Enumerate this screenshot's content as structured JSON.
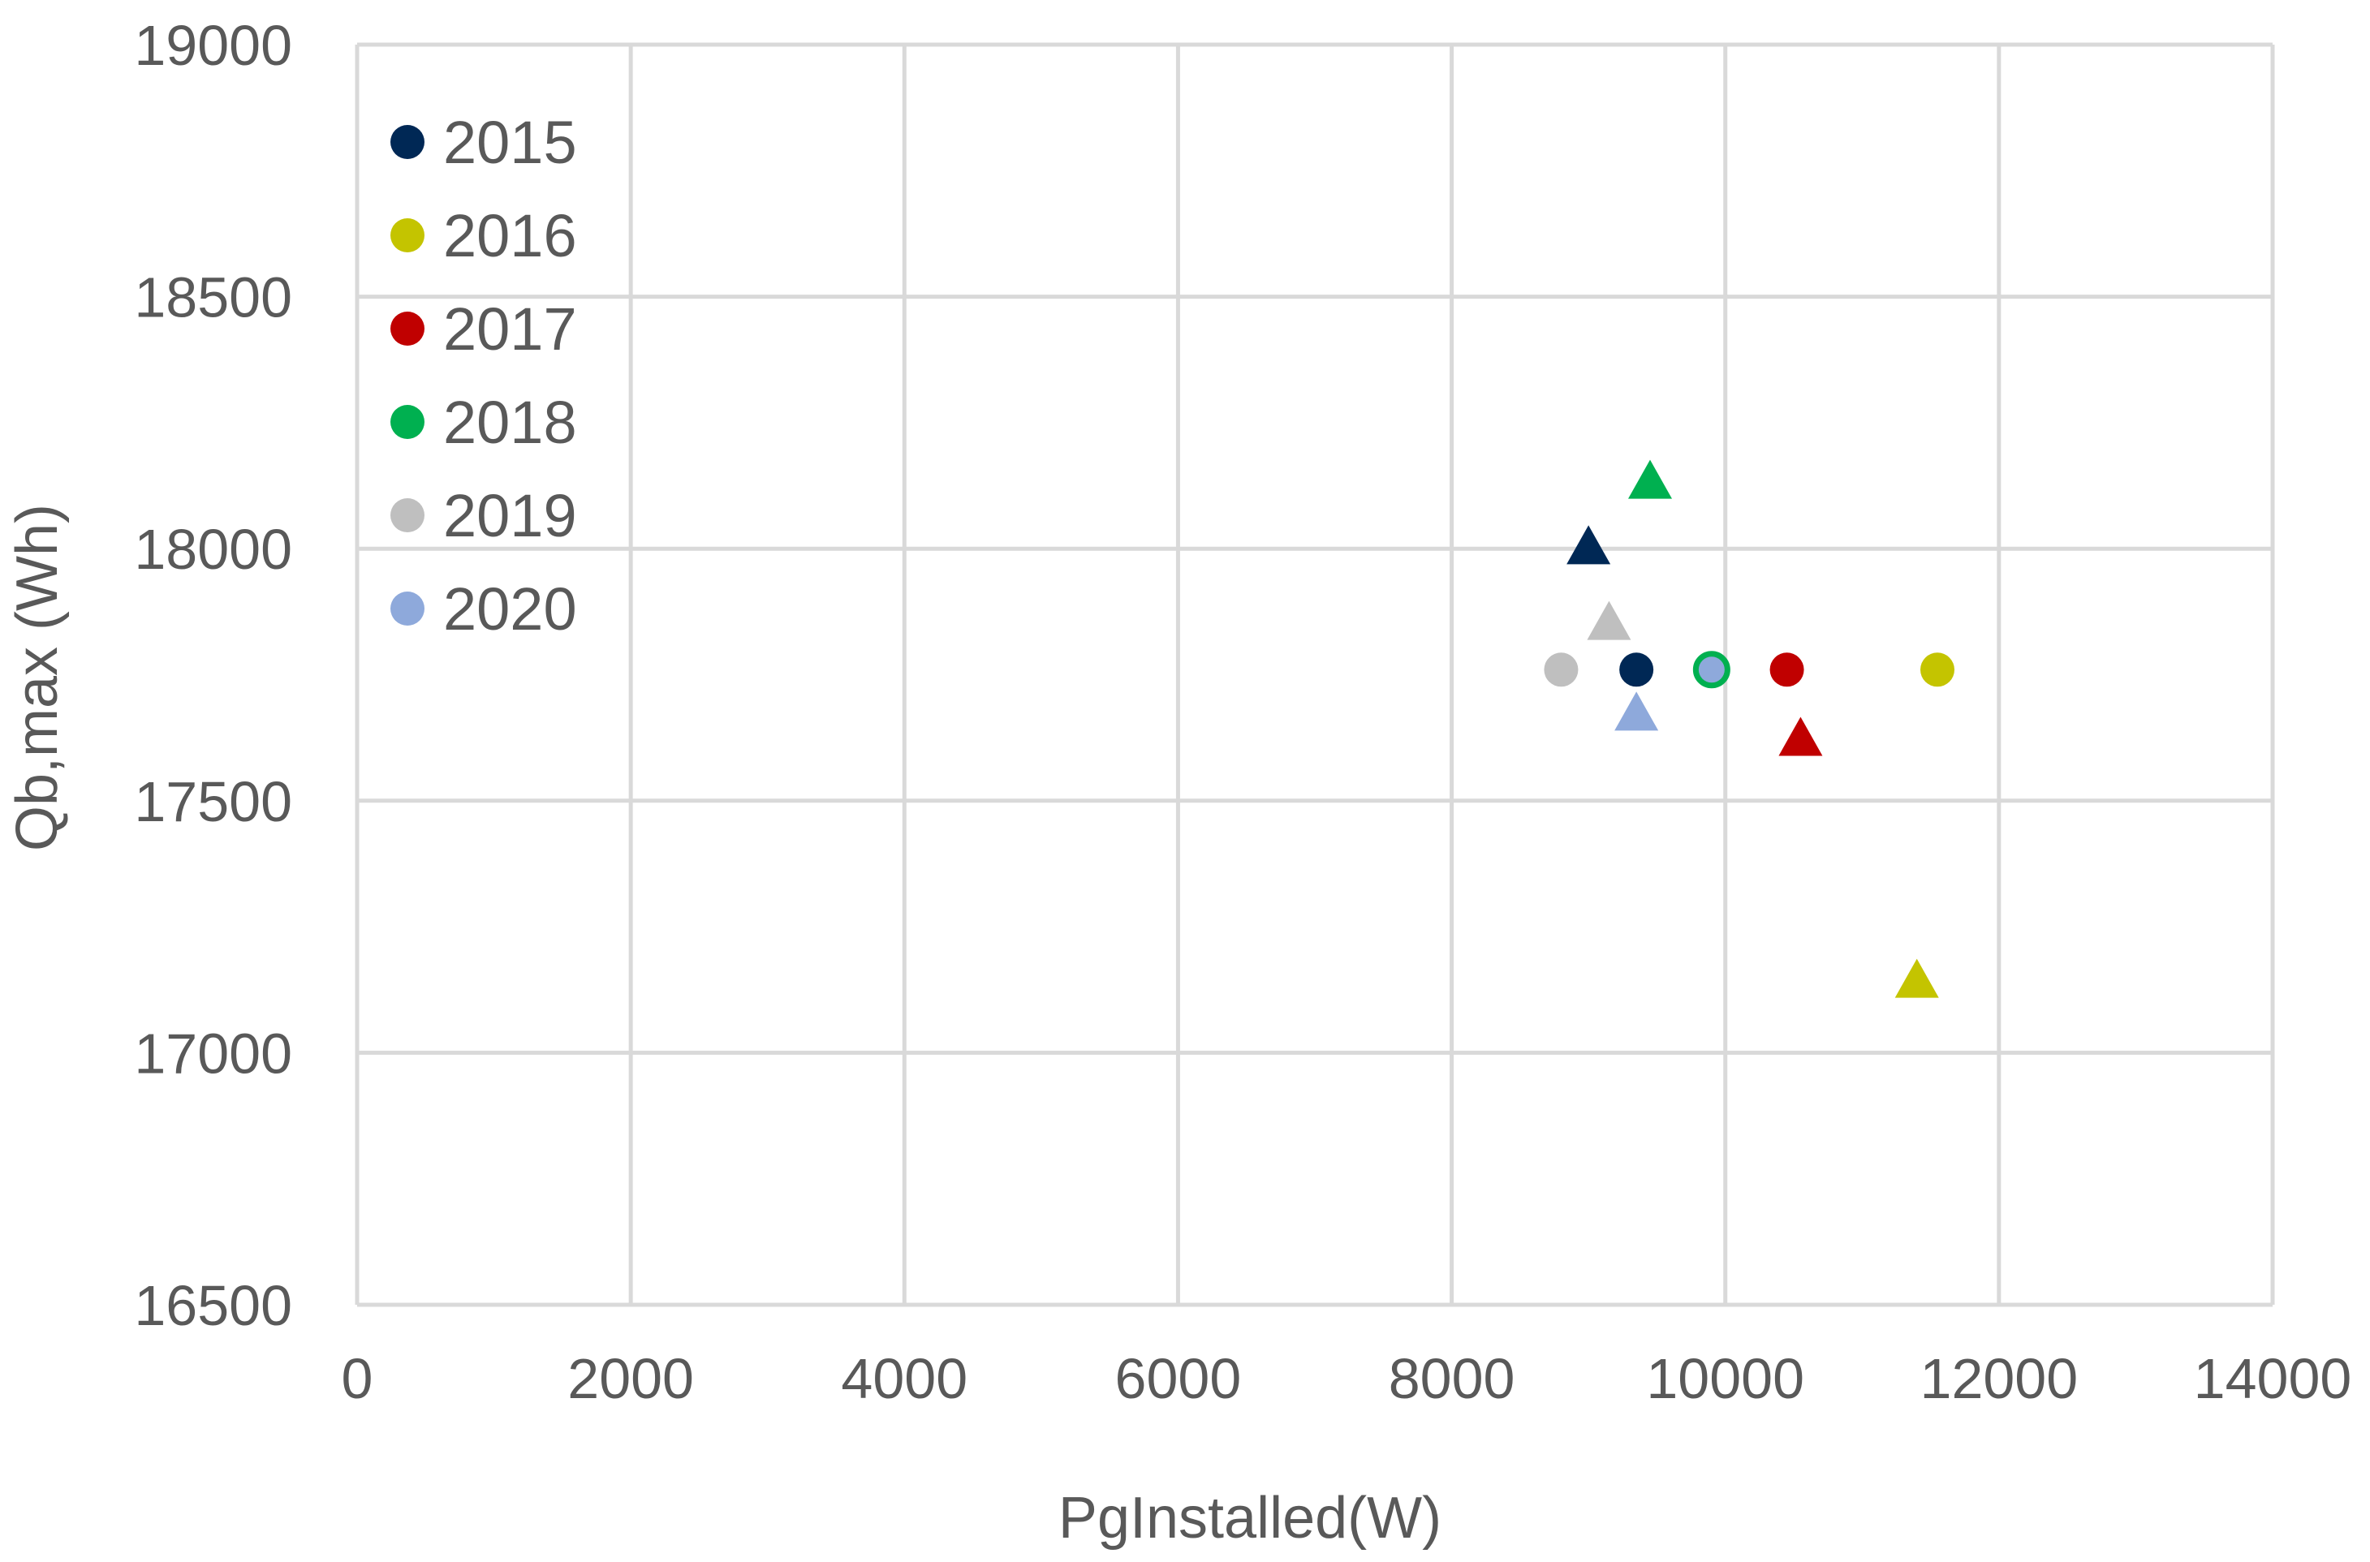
{
  "chart_data": {
    "type": "scatter",
    "title": "",
    "xlabel": "PgInstalled(W)",
    "ylabel": "Qb,max (Wh)",
    "xlim": [
      0,
      14000
    ],
    "ylim": [
      16500,
      19000
    ],
    "x_ticks": [
      0,
      2000,
      4000,
      6000,
      8000,
      10000,
      12000,
      14000
    ],
    "y_ticks": [
      16500,
      17000,
      17500,
      18000,
      18500,
      19000
    ],
    "x_tick_labels": [
      "0",
      "2000",
      "4000",
      "6000",
      "8000",
      "10000",
      "12000",
      "14000"
    ],
    "y_tick_labels": [
      "16500",
      "17000",
      "17500",
      "18000",
      "18500",
      "19000"
    ],
    "grid": true,
    "legend_position": "top-left",
    "series": [
      {
        "name": "2015",
        "color": "#002855",
        "circle": {
          "x": 9350,
          "y": 17760
        },
        "triangle": {
          "x": 9000,
          "y": 18000
        }
      },
      {
        "name": "2016",
        "color": "#C4C400",
        "circle": {
          "x": 11550,
          "y": 17760
        },
        "triangle": {
          "x": 11400,
          "y": 17140
        }
      },
      {
        "name": "2017",
        "color": "#C00000",
        "circle": {
          "x": 10450,
          "y": 17760
        },
        "triangle": {
          "x": 10550,
          "y": 17620
        }
      },
      {
        "name": "2018",
        "color": "#00B050",
        "circle": {
          "x": 9900,
          "y": 17760
        },
        "circle_style": "hollow",
        "triangle": {
          "x": 9450,
          "y": 18130
        }
      },
      {
        "name": "2019",
        "color": "#BFBFBF",
        "circle": {
          "x": 8800,
          "y": 17760
        },
        "triangle": {
          "x": 9150,
          "y": 17850
        }
      },
      {
        "name": "2020",
        "color": "#8EA9DB",
        "circle": {
          "x": 9900,
          "y": 17760
        },
        "triangle": {
          "x": 9350,
          "y": 17670
        }
      }
    ],
    "colors": {
      "grid": "#D9D9D9",
      "text": "#595959"
    }
  }
}
